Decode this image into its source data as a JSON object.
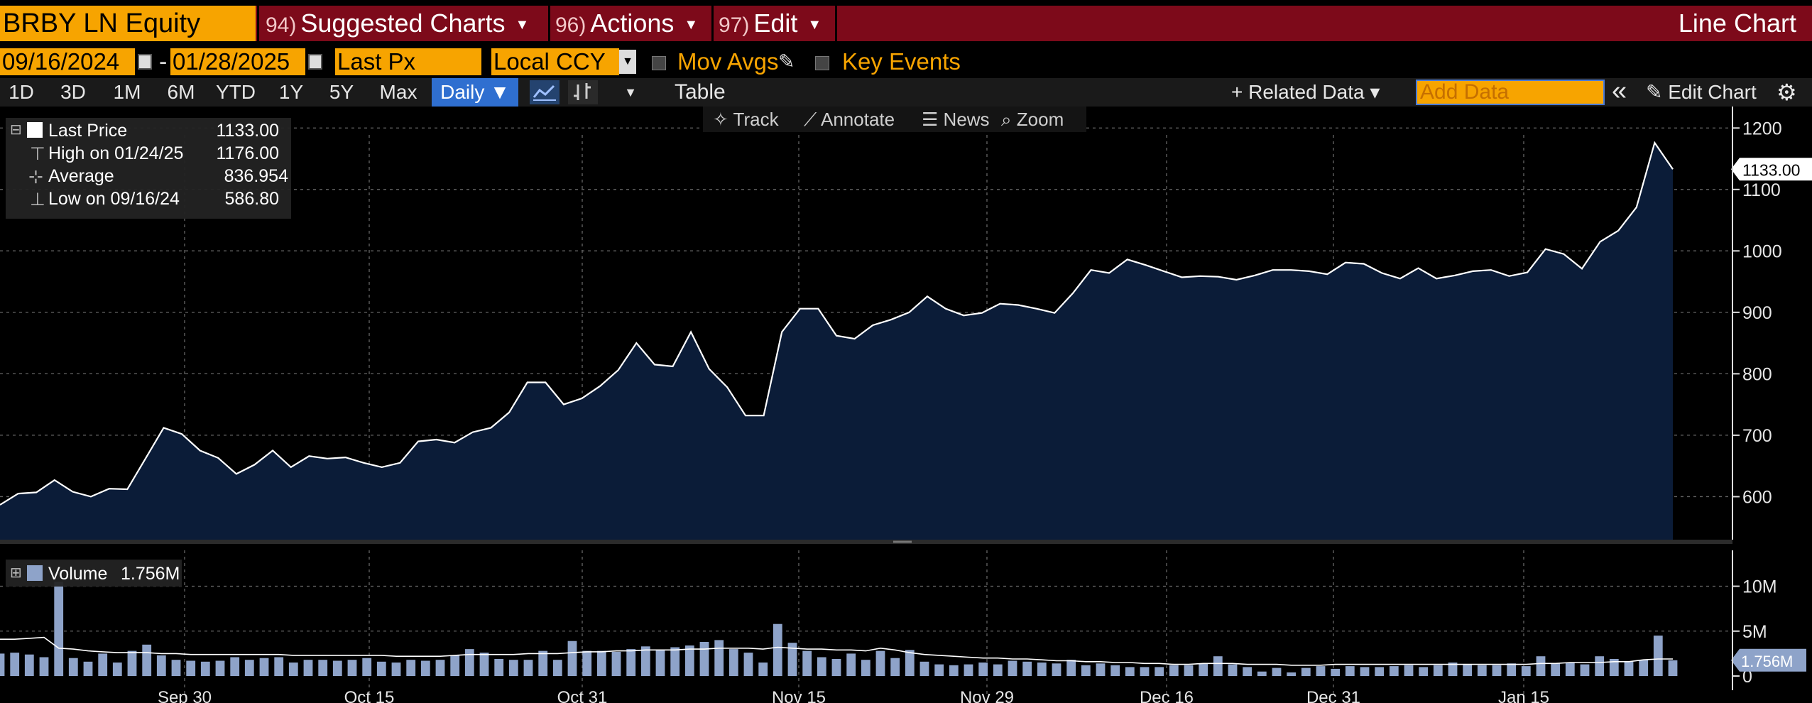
{
  "header": {
    "ticker": "BRBY LN Equity",
    "menus": [
      {
        "num": "94)",
        "label": "Suggested Charts"
      },
      {
        "num": "96)",
        "label": "Actions"
      },
      {
        "num": "97)",
        "label": "Edit"
      }
    ],
    "chart_type": "Line Chart"
  },
  "controls": {
    "start_date": "09/16/2024",
    "end_date": "01/28/2025",
    "date_sep": "-",
    "field": "Last Px",
    "currency": "Local CCY",
    "mov_avgs": "Mov Avgs",
    "key_events": "Key Events"
  },
  "toolbar": {
    "timeframes": [
      "1D",
      "3D",
      "1M",
      "6M",
      "YTD",
      "1Y",
      "5Y",
      "Max"
    ],
    "frequency": "Daily ▼",
    "table": "Table",
    "related_data": "+ Related Data ▾",
    "add_data_placeholder": "Add Data",
    "edit_chart": "Edit Chart",
    "collapse": "«"
  },
  "chart_tools": [
    "Track",
    "Annotate",
    "News",
    "Zoom"
  ],
  "legend": {
    "rows": [
      {
        "label": "Last Price",
        "value": "1133.00"
      },
      {
        "label": "High on 01/24/25",
        "value": "1176.00"
      },
      {
        "label": "Average",
        "value": "836.954"
      },
      {
        "label": "Low on 09/16/24",
        "value": "586.80"
      }
    ]
  },
  "volume_legend": {
    "label": "Volume",
    "value": "1.756M"
  },
  "colors": {
    "header_bg": "#7d0a1a",
    "orange": "#f7a400",
    "area_fill": "#0b1c38",
    "line": "#ffffff",
    "volume_bar": "#8ea3c9"
  },
  "chart_data": [
    {
      "type": "area",
      "series": [
        {
          "name": "Last Price",
          "values": [
            586.8,
            605,
            607,
            627,
            608,
            600,
            613,
            612,
            662,
            712,
            702,
            675,
            663,
            637,
            652,
            675,
            648,
            666,
            662,
            664,
            655,
            648,
            655,
            690,
            693,
            688,
            705,
            712,
            737,
            786,
            786,
            750,
            760,
            780,
            806,
            850,
            815,
            812,
            868,
            808,
            778,
            732,
            732,
            868,
            906,
            906,
            862,
            857,
            879,
            888,
            900,
            926,
            906,
            895,
            899,
            914,
            912,
            906,
            899,
            931,
            969,
            964,
            986,
            977,
            967,
            957,
            959,
            958,
            953,
            960,
            969,
            969,
            967,
            962,
            981,
            979,
            964,
            955,
            972,
            955,
            960,
            967,
            969,
            959,
            965,
            1003,
            995,
            971,
            1015,
            1033,
            1071,
            1176,
            1133
          ]
        }
      ],
      "x_start": "09/16/2024",
      "x_end": "01/28/2025",
      "x_tick_labels": [
        "Sep 30",
        "Oct 15",
        "Oct 31",
        "Nov 15",
        "Nov 29",
        "Dec 16",
        "Dec 31",
        "Jan 15"
      ],
      "y_ticks": [
        600,
        700,
        800,
        900,
        1000,
        1100,
        1200
      ],
      "ylim": [
        530,
        1235
      ],
      "last_label": "1133.00",
      "grid": true
    },
    {
      "type": "bar",
      "series": [
        {
          "name": "Volume",
          "values": [
            2.5,
            2.6,
            2.4,
            2.1,
            10.5,
            2.0,
            1.6,
            2.5,
            1.5,
            2.8,
            3.5,
            2.3,
            1.8,
            1.7,
            1.6,
            1.7,
            2.1,
            1.8,
            2.0,
            2.1,
            1.5,
            1.8,
            1.8,
            1.7,
            1.8,
            2.0,
            1.6,
            1.5,
            1.8,
            1.7,
            1.8,
            2.3,
            3.0,
            2.6,
            1.9,
            1.8,
            1.8,
            2.8,
            1.8,
            3.9,
            2.8,
            2.8,
            2.7,
            3.0,
            3.3,
            2.9,
            3.2,
            3.4,
            3.8,
            4.0,
            3.0,
            2.6,
            1.5,
            5.8,
            3.7,
            2.8,
            2.1,
            1.9,
            2.5,
            1.8,
            2.8,
            2.0,
            2.9,
            1.6,
            1.3,
            1.2,
            1.3,
            1.5,
            1.3,
            1.7,
            1.6,
            1.5,
            1.4,
            1.8,
            1.2,
            1.4,
            1.2,
            1.0,
            1.0,
            1.0,
            1.2,
            1.2,
            1.4,
            2.2,
            1.3,
            1.0,
            0.5,
            0.9,
            0.4,
            0.9,
            1.1,
            0.8,
            1.1,
            1.0,
            1.0,
            1.1,
            1.2,
            1.0,
            1.2,
            1.5,
            1.3,
            1.2,
            1.2,
            1.4,
            1.1,
            2.2,
            1.4,
            1.5,
            1.3,
            2.2,
            1.9,
            1.6,
            1.8,
            4.5,
            1.756
          ]
        },
        {
          "name": "Average",
          "values": [
            4.1,
            4.1,
            4.2,
            4.3,
            3.1,
            3.0,
            2.8,
            2.7,
            2.6,
            2.6,
            2.6,
            2.5,
            2.5,
            2.4,
            2.4,
            2.4,
            2.4,
            2.4,
            2.4,
            2.4,
            2.3,
            2.3,
            2.3,
            2.3,
            2.3,
            2.3,
            2.3,
            2.2,
            2.2,
            2.2,
            2.2,
            2.3,
            2.4,
            2.4,
            2.4,
            2.4,
            2.5,
            2.5,
            2.5,
            2.6,
            2.7,
            2.7,
            2.8,
            2.8,
            2.9,
            2.9,
            2.9,
            3.0,
            3.0,
            3.1,
            3.1,
            3.1,
            3.0,
            3.2,
            3.1,
            3.0,
            3.0,
            2.9,
            2.9,
            2.8,
            3.1,
            2.9,
            2.6,
            2.4,
            2.3,
            2.2,
            2.1,
            2.0,
            2.0,
            1.9,
            1.9,
            1.8,
            1.7,
            1.7,
            1.6,
            1.6,
            1.5,
            1.5,
            1.4,
            1.4,
            1.3,
            1.3,
            1.4,
            1.4,
            1.4,
            1.3,
            1.3,
            1.3,
            1.2,
            1.2,
            1.2,
            1.3,
            1.3,
            1.3,
            1.3,
            1.3,
            1.3,
            1.3,
            1.3,
            1.3,
            1.3,
            1.3,
            1.3,
            1.3,
            1.3,
            1.4,
            1.4,
            1.5,
            1.5,
            1.5,
            1.6,
            1.6,
            1.8,
            1.9,
            1.9
          ]
        }
      ],
      "y_ticks": [
        "0",
        "5M",
        "10M"
      ],
      "ylim": [
        0,
        14
      ],
      "last_label": "1.756M"
    }
  ]
}
